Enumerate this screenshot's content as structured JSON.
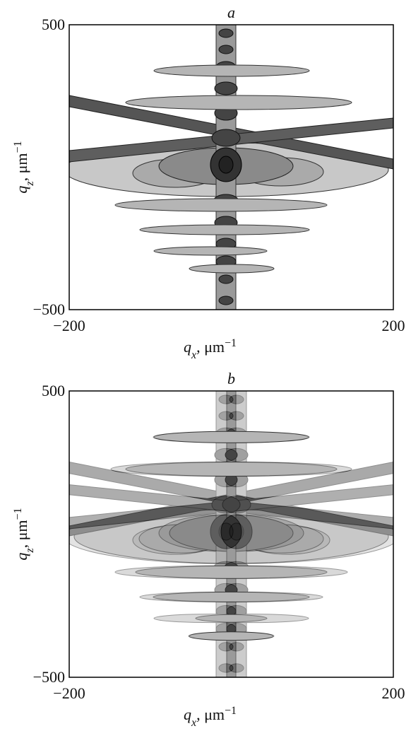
{
  "chart_data": [
    {
      "type": "contour",
      "title": "a",
      "xlabel": {
        "symbol": "q",
        "subscript": "x",
        "unit": ", μm",
        "exponent": "−1"
      },
      "ylabel": {
        "symbol": "q",
        "subscript": "z",
        "unit": ", μm",
        "exponent": "−1"
      },
      "xlim": [
        -200,
        200
      ],
      "xticks": [
        {
          "value": -200,
          "label": "−200"
        },
        200
      ],
      "ylim": [
        -500,
        500
      ],
      "yticks": [
        {
          "value": -500,
          "label": "−500"
        },
        500
      ]
    },
    {
      "type": "contour",
      "title": "b",
      "xlabel": {
        "symbol": "q",
        "subscript": "x",
        "unit": ", μm",
        "exponent": "−1"
      },
      "ylabel": {
        "symbol": "q",
        "subscript": "z",
        "unit": ", μm",
        "exponent": "−1"
      },
      "xlim": [
        -200,
        200
      ],
      "xticks": [
        {
          "value": -200,
          "label": "−200"
        },
        200
      ],
      "ylim": [
        -500,
        500
      ],
      "yticks": [
        {
          "value": -500,
          "label": "−500"
        },
        500
      ]
    }
  ]
}
